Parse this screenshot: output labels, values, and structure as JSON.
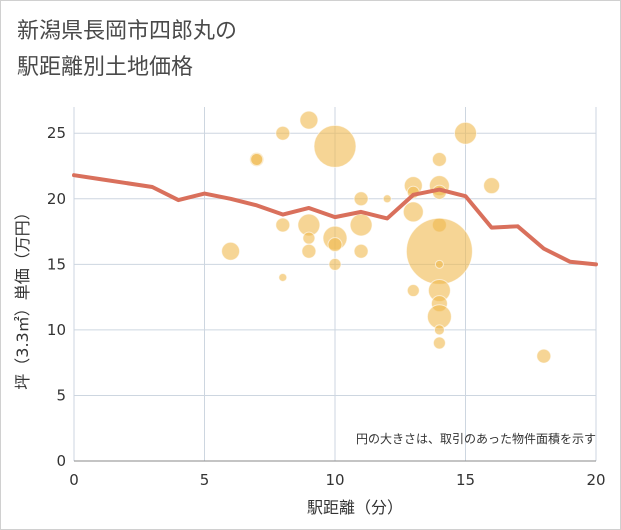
{
  "title": {
    "line1": "新潟県長岡市四郎丸の",
    "line2": "駅距離別土地価格"
  },
  "chart_data": {
    "type": "scatter",
    "xlabel": "駅距離（分）",
    "ylabel": "坪（3.3㎡）単価（万円）",
    "xlim": [
      0,
      20
    ],
    "ylim": [
      0,
      27
    ],
    "xticks": [
      0,
      5,
      10,
      15,
      20
    ],
    "yticks": [
      0,
      5,
      10,
      15,
      20,
      25
    ],
    "grid": true,
    "note": "円の大きさは、取引のあった物件面積を示す",
    "bubble_color": "#f0b94f",
    "line_color": "#d9705c",
    "points": [
      {
        "x": 6,
        "y": 16,
        "size": 9
      },
      {
        "x": 7,
        "y": 23,
        "size": 7
      },
      {
        "x": 7,
        "y": 23,
        "size": 6
      },
      {
        "x": 8,
        "y": 25,
        "size": 7
      },
      {
        "x": 8,
        "y": 18,
        "size": 7
      },
      {
        "x": 8,
        "y": 14,
        "size": 4
      },
      {
        "x": 9,
        "y": 26,
        "size": 9
      },
      {
        "x": 9,
        "y": 18,
        "size": 11
      },
      {
        "x": 9,
        "y": 17,
        "size": 6
      },
      {
        "x": 9,
        "y": 16,
        "size": 7
      },
      {
        "x": 10,
        "y": 24,
        "size": 21
      },
      {
        "x": 10,
        "y": 17,
        "size": 12
      },
      {
        "x": 10,
        "y": 16.5,
        "size": 7
      },
      {
        "x": 10,
        "y": 15,
        "size": 6
      },
      {
        "x": 11,
        "y": 20,
        "size": 7
      },
      {
        "x": 11,
        "y": 18,
        "size": 11
      },
      {
        "x": 11,
        "y": 16,
        "size": 7
      },
      {
        "x": 12,
        "y": 20,
        "size": 4
      },
      {
        "x": 13,
        "y": 21,
        "size": 9
      },
      {
        "x": 13,
        "y": 20.5,
        "size": 6
      },
      {
        "x": 13,
        "y": 19,
        "size": 10
      },
      {
        "x": 13,
        "y": 13,
        "size": 6
      },
      {
        "x": 14,
        "y": 23,
        "size": 7
      },
      {
        "x": 14,
        "y": 21,
        "size": 10
      },
      {
        "x": 14,
        "y": 20.5,
        "size": 7
      },
      {
        "x": 14,
        "y": 18,
        "size": 7
      },
      {
        "x": 14,
        "y": 16,
        "size": 33
      },
      {
        "x": 14,
        "y": 15,
        "size": 4
      },
      {
        "x": 14,
        "y": 13,
        "size": 11
      },
      {
        "x": 14,
        "y": 12,
        "size": 8
      },
      {
        "x": 14,
        "y": 11,
        "size": 12
      },
      {
        "x": 14,
        "y": 10,
        "size": 5
      },
      {
        "x": 14,
        "y": 9,
        "size": 6
      },
      {
        "x": 15,
        "y": 25,
        "size": 11
      },
      {
        "x": 16,
        "y": 21,
        "size": 8
      },
      {
        "x": 18,
        "y": 8,
        "size": 7
      }
    ],
    "line": {
      "x": [
        0,
        1,
        2,
        3,
        4,
        5,
        6,
        7,
        8,
        9,
        10,
        11,
        12,
        13,
        14,
        15,
        16,
        17,
        18,
        19,
        20
      ],
      "y": [
        21.8,
        21.5,
        21.2,
        20.9,
        19.9,
        20.4,
        20.0,
        19.5,
        18.8,
        19.3,
        18.6,
        19.0,
        18.5,
        20.3,
        20.7,
        20.2,
        17.8,
        17.9,
        16.2,
        15.2,
        15.0
      ]
    }
  }
}
